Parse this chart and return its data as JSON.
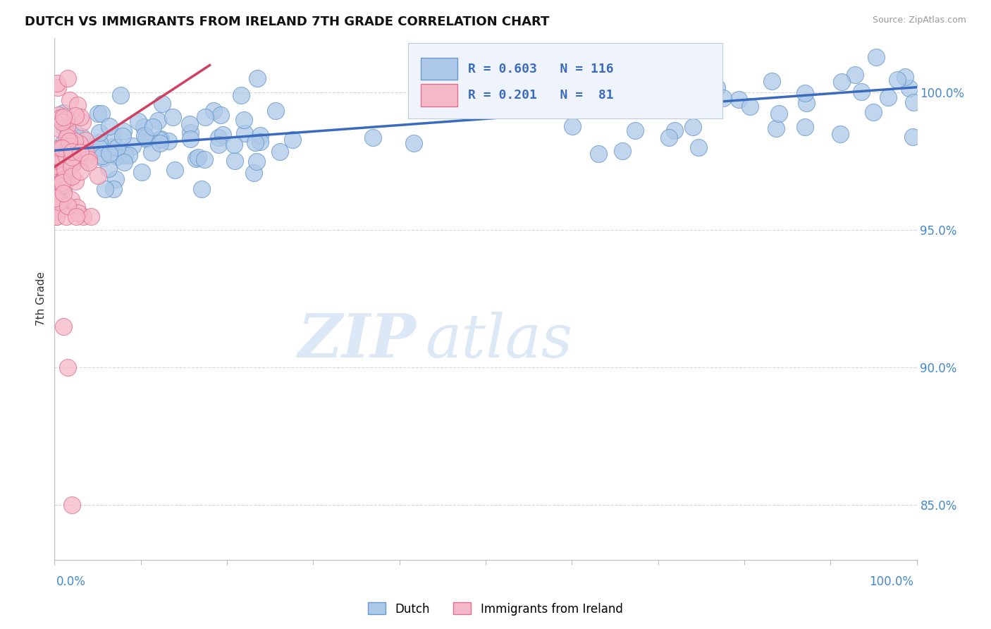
{
  "title": "DUTCH VS IMMIGRANTS FROM IRELAND 7TH GRADE CORRELATION CHART",
  "source_text": "Source: ZipAtlas.com",
  "ylabel": "7th Grade",
  "right_yticks": [
    85.0,
    90.0,
    95.0,
    100.0
  ],
  "dutch_R": 0.603,
  "dutch_N": 116,
  "ireland_R": 0.201,
  "ireland_N": 81,
  "dutch_color": "#adc8e8",
  "dutch_edge_color": "#6699cc",
  "dutch_line_color": "#3a6bbf",
  "ireland_color": "#f5b8c8",
  "ireland_edge_color": "#e07090",
  "ireland_line_color": "#d04060",
  "watermark_zip": "ZIP",
  "watermark_atlas": "atlas",
  "watermark_color": "#dce8f5",
  "xlim": [
    0.0,
    1.0
  ],
  "ylim_min": 83.0,
  "ylim_max": 102.0,
  "background": "#ffffff",
  "grid_color": "#cccccc",
  "title_color": "#111111",
  "source_color": "#999999",
  "axis_label_color": "#333333",
  "tick_color": "#4488cc",
  "legend_bg": "#eef3fc",
  "legend_border": "#bbccdd"
}
